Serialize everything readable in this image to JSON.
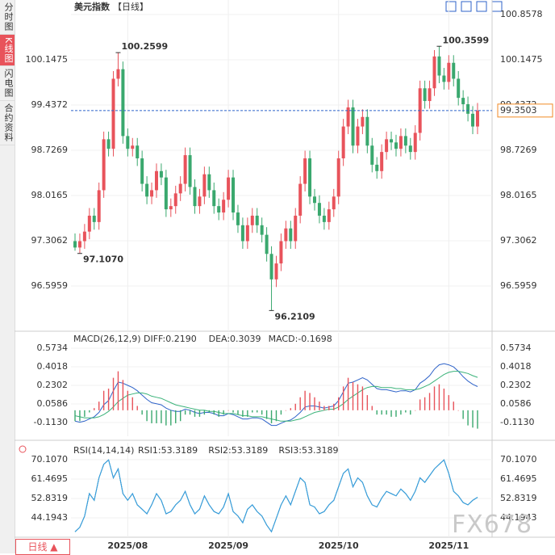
{
  "sidebar": [
    "分时图",
    "K线图",
    "闪电图",
    "合约资料"
  ],
  "period_button": "日线 ▲",
  "watermark": "FX678",
  "chart_data": [
    {
      "type": "candlestick",
      "title": "美元指数",
      "subtitle": "【日线】",
      "up_color": "#e8535b",
      "down_color": "#3aa86e",
      "categories": [
        null,
        null,
        null,
        null,
        null,
        null,
        null,
        null,
        null,
        null,
        null,
        "2025/08",
        null,
        null,
        null,
        null,
        null,
        null,
        null,
        null,
        null,
        null,
        null,
        null,
        null,
        null,
        null,
        null,
        null,
        null,
        null,
        null,
        "2025/09",
        null,
        null,
        null,
        null,
        null,
        null,
        null,
        null,
        null,
        null,
        null,
        null,
        null,
        null,
        null,
        null,
        null,
        null,
        null,
        null,
        null,
        null,
        "2025/10",
        null,
        null,
        null,
        null,
        null,
        null,
        null,
        null,
        null,
        null,
        null,
        null,
        null,
        null,
        null,
        null,
        null,
        null,
        null,
        null,
        null,
        null,
        "2025/11",
        null,
        null,
        null,
        null,
        null,
        null
      ],
      "open": [
        97.3,
        97.2,
        97.3,
        97.45,
        97.7,
        97.6,
        98.1,
        98.9,
        98.75,
        99.85,
        100.0,
        98.95,
        98.75,
        98.8,
        98.6,
        98.2,
        98.0,
        98.1,
        98.4,
        98.3,
        97.8,
        97.85,
        98.05,
        98.2,
        98.65,
        98.15,
        97.85,
        98.0,
        98.35,
        98.1,
        97.85,
        97.75,
        97.95,
        98.3,
        97.75,
        97.55,
        97.3,
        97.55,
        97.7,
        97.55,
        97.4,
        97.1,
        96.7,
        96.95,
        97.3,
        97.5,
        97.3,
        97.7,
        98.2,
        98.6,
        98.0,
        97.9,
        97.7,
        97.6,
        97.8,
        98.0,
        98.6,
        99.1,
        99.4,
        98.8,
        99.1,
        99.25,
        98.8,
        98.5,
        98.4,
        98.7,
        98.9,
        98.85,
        98.75,
        98.95,
        98.8,
        98.7,
        99.0,
        99.7,
        99.5,
        99.7,
        100.2,
        99.9,
        99.8,
        100.1,
        99.85,
        99.55,
        99.45,
        99.3,
        99.1
      ],
      "high": [
        97.42,
        97.42,
        97.57,
        97.82,
        97.82,
        98.22,
        99.02,
        99.02,
        99.97,
        100.2599,
        100.12,
        99.07,
        98.92,
        98.92,
        98.72,
        98.32,
        98.22,
        98.52,
        98.52,
        98.42,
        97.97,
        98.17,
        98.32,
        98.77,
        98.77,
        98.27,
        98.12,
        98.47,
        98.47,
        98.22,
        97.97,
        98.07,
        98.42,
        98.42,
        97.87,
        97.67,
        97.67,
        97.82,
        97.82,
        97.67,
        97.52,
        97.22,
        97.07,
        97.42,
        97.62,
        97.62,
        97.82,
        98.32,
        98.72,
        98.72,
        98.12,
        98.02,
        97.82,
        97.92,
        98.12,
        98.72,
        99.22,
        99.52,
        99.52,
        99.22,
        99.37,
        99.37,
        98.92,
        98.62,
        98.82,
        99.02,
        99.02,
        98.97,
        99.07,
        99.07,
        98.92,
        99.12,
        99.82,
        99.82,
        99.82,
        100.3,
        100.3599,
        100.02,
        100.22,
        100.22,
        99.97,
        99.67,
        99.57,
        99.42,
        99.47
      ],
      "low": [
        97.15,
        97.107,
        97.18,
        97.33,
        97.48,
        97.48,
        97.98,
        98.63,
        98.63,
        99.73,
        98.83,
        98.63,
        98.63,
        98.48,
        98.08,
        97.88,
        97.88,
        97.98,
        98.18,
        97.68,
        97.68,
        97.73,
        97.93,
        98.08,
        98.03,
        97.73,
        97.73,
        97.88,
        97.98,
        97.73,
        97.63,
        97.63,
        97.83,
        97.63,
        97.43,
        97.18,
        97.18,
        97.43,
        97.43,
        97.28,
        96.98,
        96.2109,
        96.58,
        96.83,
        97.18,
        97.18,
        97.18,
        97.58,
        98.08,
        97.88,
        97.78,
        97.58,
        97.48,
        97.48,
        97.68,
        97.88,
        98.48,
        98.98,
        98.68,
        98.68,
        98.98,
        98.68,
        98.38,
        98.28,
        98.28,
        98.58,
        98.73,
        98.63,
        98.63,
        98.68,
        98.58,
        98.58,
        98.88,
        99.38,
        99.38,
        99.58,
        99.78,
        99.68,
        99.68,
        99.73,
        99.43,
        99.33,
        99.18,
        98.98,
        98.98
      ],
      "close": [
        97.2,
        97.3,
        97.45,
        97.7,
        97.6,
        98.1,
        98.9,
        98.75,
        99.85,
        100.0,
        98.95,
        98.75,
        98.8,
        98.6,
        98.2,
        98.0,
        98.1,
        98.4,
        98.3,
        97.8,
        97.85,
        98.05,
        98.2,
        98.65,
        98.15,
        97.85,
        98.0,
        98.35,
        98.1,
        97.85,
        97.75,
        97.95,
        98.3,
        97.75,
        97.55,
        97.3,
        97.55,
        97.7,
        97.55,
        97.4,
        97.1,
        96.7,
        96.95,
        97.3,
        97.5,
        97.3,
        97.7,
        98.2,
        98.6,
        98.0,
        97.9,
        97.7,
        97.6,
        97.8,
        98.0,
        98.6,
        99.1,
        99.4,
        98.8,
        99.1,
        99.25,
        98.8,
        98.5,
        98.4,
        98.7,
        98.9,
        98.85,
        98.75,
        98.95,
        98.8,
        98.7,
        99.0,
        99.7,
        99.5,
        99.7,
        100.2,
        99.9,
        99.8,
        100.1,
        99.85,
        99.55,
        99.45,
        99.3,
        99.1,
        99.3503
      ],
      "ylim": [
        95.886,
        101.086
      ],
      "yticks": [
        100.8578,
        100.1475,
        99.4372,
        98.7269,
        98.0165,
        97.3062,
        96.5959
      ],
      "annotations": [
        {
          "value": 100.2599,
          "label": "100.2599"
        },
        {
          "value": 97.107,
          "label": "97.1070"
        },
        {
          "value": 96.2109,
          "label": "96.2109"
        },
        {
          "value": 100.3599,
          "label": "100.3599"
        }
      ],
      "last": {
        "value": 99.3503,
        "label": "99.3503"
      }
    },
    {
      "type": "macd",
      "title": "MACD(26,12,9)",
      "ylim": [
        -0.2399,
        0.7152
      ],
      "yticks": [
        0.5734,
        0.4018,
        0.2302,
        0.0586,
        {
          "value": -0.113,
          "label": "-0.1130"
        }
      ],
      "series": [
        {
          "name": "DIFF:0.2190",
          "color": "#2f63c9",
          "values": [
            -0.1,
            -0.11,
            -0.1,
            -0.08,
            -0.06,
            -0.02,
            0.05,
            0.09,
            0.18,
            0.26,
            0.25,
            0.23,
            0.21,
            0.18,
            0.14,
            0.1,
            0.07,
            0.06,
            0.05,
            0.02,
            0.0,
            -0.01,
            -0.01,
            0.01,
            0.0,
            -0.02,
            -0.03,
            -0.02,
            -0.02,
            -0.03,
            -0.05,
            -0.05,
            -0.03,
            -0.04,
            -0.06,
            -0.08,
            -0.08,
            -0.07,
            -0.07,
            -0.08,
            -0.11,
            -0.14,
            -0.14,
            -0.12,
            -0.1,
            -0.09,
            -0.06,
            -0.02,
            0.03,
            0.04,
            0.04,
            0.03,
            0.02,
            0.03,
            0.04,
            0.09,
            0.17,
            0.25,
            0.26,
            0.28,
            0.3,
            0.28,
            0.24,
            0.2,
            0.19,
            0.19,
            0.18,
            0.17,
            0.18,
            0.18,
            0.17,
            0.19,
            0.25,
            0.28,
            0.32,
            0.38,
            0.42,
            0.43,
            0.42,
            0.4,
            0.36,
            0.31,
            0.27,
            0.24,
            0.219
          ]
        },
        {
          "name": "DEA:0.3039",
          "color": "#3bb37a",
          "values": [
            -0.05,
            -0.06,
            -0.07,
            -0.07,
            -0.07,
            -0.06,
            -0.04,
            -0.01,
            0.03,
            0.08,
            0.11,
            0.14,
            0.15,
            0.16,
            0.16,
            0.15,
            0.13,
            0.12,
            0.11,
            0.09,
            0.07,
            0.05,
            0.04,
            0.03,
            0.02,
            0.01,
            0.0,
            0.0,
            -0.01,
            -0.01,
            -0.02,
            -0.03,
            -0.03,
            -0.03,
            -0.04,
            -0.05,
            -0.05,
            -0.06,
            -0.06,
            -0.06,
            -0.07,
            -0.08,
            -0.09,
            -0.1,
            -0.1,
            -0.1,
            -0.09,
            -0.08,
            -0.06,
            -0.04,
            -0.02,
            -0.01,
            0.0,
            0.01,
            0.01,
            0.03,
            0.06,
            0.1,
            0.13,
            0.16,
            0.19,
            0.21,
            0.22,
            0.22,
            0.21,
            0.21,
            0.21,
            0.2,
            0.2,
            0.19,
            0.19,
            0.19,
            0.2,
            0.22,
            0.24,
            0.27,
            0.3,
            0.33,
            0.35,
            0.36,
            0.36,
            0.35,
            0.34,
            0.32,
            0.3039
          ]
        },
        {
          "name": "MACD:-0.1698",
          "type": "bar",
          "color": "#e8535b",
          "negative_color": "#3aa86e",
          "label_color": "#2f8fd8",
          "values": [
            -0.1,
            -0.1,
            -0.06,
            -0.02,
            0.02,
            0.08,
            0.18,
            0.2,
            0.3,
            0.36,
            0.28,
            0.18,
            0.12,
            0.04,
            -0.04,
            -0.1,
            -0.12,
            -0.12,
            -0.12,
            -0.14,
            -0.14,
            -0.12,
            -0.1,
            -0.04,
            -0.04,
            -0.06,
            -0.06,
            -0.04,
            -0.02,
            -0.04,
            -0.06,
            -0.04,
            0.0,
            -0.02,
            -0.04,
            -0.06,
            -0.06,
            -0.02,
            -0.02,
            -0.04,
            -0.08,
            -0.12,
            -0.1,
            -0.04,
            0.0,
            0.02,
            0.06,
            0.12,
            0.18,
            0.16,
            0.12,
            0.08,
            0.04,
            0.04,
            0.06,
            0.12,
            0.22,
            0.3,
            0.26,
            0.24,
            0.22,
            0.14,
            0.04,
            -0.04,
            -0.04,
            -0.04,
            -0.06,
            -0.06,
            -0.04,
            -0.02,
            -0.04,
            0.0,
            0.1,
            0.12,
            0.16,
            0.22,
            0.24,
            0.2,
            0.14,
            0.08,
            0.0,
            -0.08,
            -0.14,
            -0.16,
            -0.1698
          ]
        }
      ]
    },
    {
      "type": "line",
      "title": "RSI(14,14,14)",
      "ylim": [
        35.56,
        77.66
      ],
      "yticks": [
        {
          "value": 70.107,
          "label": "70.1070"
        },
        61.4695,
        52.8319,
        44.1943
      ],
      "series": [
        {
          "name": "RSI1:53.3189",
          "color": "#2f8fd8",
          "values": [
            38,
            40,
            45,
            55,
            52,
            62,
            68,
            70,
            62,
            66,
            55,
            52,
            55,
            50,
            48,
            46,
            50,
            55,
            52,
            46,
            47,
            50,
            52,
            56,
            50,
            46,
            48,
            54,
            50,
            47,
            46,
            49,
            55,
            47,
            45,
            42,
            48,
            50,
            47,
            45,
            41,
            38,
            44,
            50,
            54,
            50,
            56,
            62,
            60,
            50,
            49,
            46,
            47,
            50,
            52,
            58,
            64,
            66,
            58,
            62,
            60,
            54,
            50,
            49,
            53,
            56,
            55,
            54,
            57,
            55,
            52,
            56,
            62,
            60,
            63,
            66,
            68,
            70,
            64,
            56,
            54,
            51,
            50,
            52,
            53.3189
          ]
        },
        {
          "name": "RSI2:53.3189",
          "color": "#3bb37a",
          "values": [
            38,
            40,
            45,
            55,
            52,
            62,
            68,
            70,
            62,
            66,
            55,
            52,
            55,
            50,
            48,
            46,
            50,
            55,
            52,
            46,
            47,
            50,
            52,
            56,
            50,
            46,
            48,
            54,
            50,
            47,
            46,
            49,
            55,
            47,
            45,
            42,
            48,
            50,
            47,
            45,
            41,
            38,
            44,
            50,
            54,
            50,
            56,
            62,
            60,
            50,
            49,
            46,
            47,
            50,
            52,
            58,
            64,
            66,
            58,
            62,
            60,
            54,
            50,
            49,
            53,
            56,
            55,
            54,
            57,
            55,
            52,
            56,
            62,
            60,
            63,
            66,
            68,
            70,
            64,
            56,
            54,
            51,
            50,
            52,
            53.3189
          ]
        },
        {
          "name": "RSI3:53.3189",
          "color": "#3b9be6",
          "values": [
            38,
            40,
            45,
            55,
            52,
            62,
            68,
            70,
            62,
            66,
            55,
            52,
            55,
            50,
            48,
            46,
            50,
            55,
            52,
            46,
            47,
            50,
            52,
            56,
            50,
            46,
            48,
            54,
            50,
            47,
            46,
            49,
            55,
            47,
            45,
            42,
            48,
            50,
            47,
            45,
            41,
            38,
            44,
            50,
            54,
            50,
            56,
            62,
            60,
            50,
            49,
            46,
            47,
            50,
            52,
            58,
            64,
            66,
            58,
            62,
            60,
            54,
            50,
            49,
            53,
            56,
            55,
            54,
            57,
            55,
            52,
            56,
            62,
            60,
            63,
            66,
            68,
            70,
            64,
            56,
            54,
            51,
            50,
            52,
            53.3189
          ]
        }
      ]
    }
  ]
}
